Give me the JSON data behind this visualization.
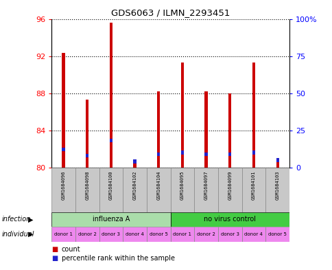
{
  "title": "GDS6063 / ILMN_2293451",
  "samples": [
    "GSM1684096",
    "GSM1684098",
    "GSM1684100",
    "GSM1684102",
    "GSM1684104",
    "GSM1684095",
    "GSM1684097",
    "GSM1684099",
    "GSM1684101",
    "GSM1684103"
  ],
  "count_values": [
    92.3,
    87.3,
    95.6,
    80.5,
    88.2,
    91.3,
    88.2,
    88.0,
    91.3,
    80.6
  ],
  "percentile_values": [
    12,
    8,
    18,
    4,
    9,
    10,
    9,
    9,
    10,
    5
  ],
  "y_min": 80,
  "y_max": 96,
  "y_ticks": [
    80,
    84,
    88,
    92,
    96
  ],
  "y2_ticks": [
    0,
    25,
    50,
    75,
    100
  ],
  "infection_groups": [
    {
      "label": "influenza A",
      "start": 0,
      "end": 5,
      "color": "#AADDAA"
    },
    {
      "label": "no virus control",
      "start": 5,
      "end": 10,
      "color": "#55CC55"
    }
  ],
  "individual_labels": [
    "donor 1",
    "donor 2",
    "donor 3",
    "donor 4",
    "donor 5",
    "donor 1",
    "donor 2",
    "donor 3",
    "donor 4",
    "donor 5"
  ],
  "individual_color": "#EE88EE",
  "sample_bg_color": "#C8C8C8",
  "bar_width": 0.12,
  "count_color": "#CC0000",
  "percentile_color": "#2222CC",
  "legend_count_color": "#CC0000",
  "legend_percentile_color": "#2222CC"
}
